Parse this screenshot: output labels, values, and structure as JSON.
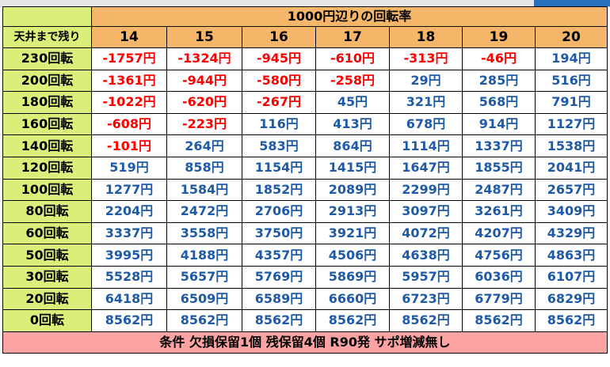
{
  "header": {
    "title": "1000円辺りの回転率",
    "row_label_header": "天井まで残り",
    "columns": [
      "14",
      "15",
      "16",
      "17",
      "18",
      "19",
      "20"
    ]
  },
  "rows": [
    {
      "label": "230回転",
      "values": [
        "-1757円",
        "-1324円",
        "-945円",
        "-610円",
        "-313円",
        "-46円",
        "194円"
      ]
    },
    {
      "label": "200回転",
      "values": [
        "-1361円",
        "-944円",
        "-580円",
        "-258円",
        "29円",
        "285円",
        "516円"
      ]
    },
    {
      "label": "180回転",
      "values": [
        "-1022円",
        "-620円",
        "-267円",
        "45円",
        "321円",
        "568円",
        "791円"
      ]
    },
    {
      "label": "160回転",
      "values": [
        "-608円",
        "-223円",
        "116円",
        "413円",
        "678円",
        "914円",
        "1127円"
      ]
    },
    {
      "label": "140回転",
      "values": [
        "-101円",
        "264円",
        "583円",
        "864円",
        "1114円",
        "1337円",
        "1538円"
      ]
    },
    {
      "label": "120回転",
      "values": [
        "519円",
        "858円",
        "1154円",
        "1415円",
        "1647円",
        "1855円",
        "2041円"
      ]
    },
    {
      "label": "100回転",
      "values": [
        "1277円",
        "1584円",
        "1852円",
        "2089円",
        "2299円",
        "2487円",
        "2657円"
      ]
    },
    {
      "label": "80回転",
      "values": [
        "2204円",
        "2472円",
        "2706円",
        "2913円",
        "3097円",
        "3261円",
        "3409円"
      ]
    },
    {
      "label": "60回転",
      "values": [
        "3337円",
        "3558円",
        "3750円",
        "3921円",
        "4072円",
        "4207円",
        "4329円"
      ]
    },
    {
      "label": "50回転",
      "values": [
        "3995円",
        "4188円",
        "4357円",
        "4506円",
        "4638円",
        "4756円",
        "4863円"
      ]
    },
    {
      "label": "30回転",
      "values": [
        "5528円",
        "5657円",
        "5769円",
        "5869円",
        "5957円",
        "6036円",
        "6107円"
      ]
    },
    {
      "label": "20回転",
      "values": [
        "6418円",
        "6509円",
        "6589円",
        "6660円",
        "6723円",
        "6779円",
        "6829円"
      ]
    },
    {
      "label": "0回転",
      "values": [
        "8562円",
        "8562円",
        "8562円",
        "8562円",
        "8562円",
        "8562円",
        "8562円"
      ]
    }
  ],
  "footer": "条件 欠損保留1個 残保留4個 R90発 サポ増減無し",
  "colors": {
    "header_orange": "#f5b66a",
    "label_green": "#d9ef7a",
    "negative_red": "#ff0000",
    "positive_blue": "#1e5aa8",
    "footer_pink": "#fba3a3"
  }
}
